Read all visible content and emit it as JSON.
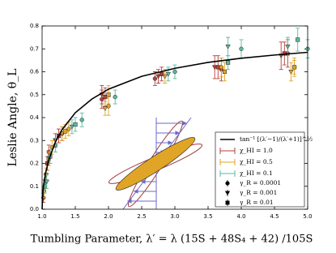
{
  "chart_data": {
    "type": "errorbar_scatter",
    "xlabel": "Tumbling Parameter, λ′ = λ (15S + 48S₄ + 42) /105S",
    "ylabel": "Leslie Angle, θ_L",
    "xlim": [
      1.0,
      5.0
    ],
    "ylim": [
      0.0,
      0.8
    ],
    "xticks": [
      {
        "value": 1.0,
        "label": "1.0"
      },
      1.5,
      {
        "value": 2.0,
        "label": "2.0"
      },
      2.5,
      {
        "value": 3.0,
        "label": "3.0"
      },
      3.5,
      {
        "value": 4.0,
        "label": "4.0"
      },
      4.5,
      {
        "value": 5.0,
        "label": "5.0"
      }
    ],
    "yticks": [
      {
        "value": 0.0,
        "label": "0.0"
      },
      0.1,
      0.2,
      0.3,
      0.4,
      0.5,
      0.6,
      0.7,
      0.8
    ],
    "curve": {
      "name": "tan⁻¹ [(λ′−1)/(λ′+1)]^½",
      "color": "#000000",
      "x": [
        1.0,
        1.01,
        1.02,
        1.05,
        1.1,
        1.2,
        1.3,
        1.5,
        1.75,
        2.0,
        2.5,
        3.0,
        3.5,
        4.0,
        4.5,
        5.0
      ],
      "values": [
        0.0,
        0.07,
        0.099,
        0.155,
        0.215,
        0.293,
        0.347,
        0.421,
        0.481,
        0.524,
        0.58,
        0.615,
        0.641,
        0.659,
        0.673,
        0.685
      ]
    },
    "markers": [
      {
        "name": "γ_R = 0.0001",
        "marker": "circle"
      },
      {
        "name": "γ_R = 0.001",
        "marker": "triangle"
      },
      {
        "name": "γ_R = 0.01",
        "marker": "square"
      }
    ],
    "series": [
      {
        "name": "χ_HI = 1.0",
        "color": "#b5403a",
        "groups": [
          {
            "marker": 0,
            "x": [
              1.02,
              1.1,
              1.3,
              1.9,
              2.7,
              3.7,
              4.7
            ],
            "values": [
              0.05,
              0.25,
              0.33,
              0.48,
              0.57,
              0.61,
              0.68
            ],
            "errors": [
              0.02,
              0.03,
              0.03,
              0.04,
              0.03,
              0.05,
              0.06
            ]
          },
          {
            "marker": 1,
            "x": [
              1.05,
              1.2,
              1.9,
              2.75,
              3.6,
              4.6
            ],
            "values": [
              0.12,
              0.3,
              0.5,
              0.58,
              0.62,
              0.67
            ],
            "errors": [
              0.03,
              0.03,
              0.04,
              0.03,
              0.05,
              0.06
            ]
          },
          {
            "marker": 2,
            "x": [
              1.08,
              1.25,
              1.95,
              2.8,
              3.65,
              4.65
            ],
            "values": [
              0.2,
              0.32,
              0.49,
              0.59,
              0.62,
              0.68
            ],
            "errors": [
              0.03,
              0.03,
              0.04,
              0.03,
              0.05,
              0.05
            ]
          }
        ]
      },
      {
        "name": "χ_HI = 0.5",
        "color": "#e0a526",
        "groups": [
          {
            "marker": 0,
            "x": [
              1.03,
              1.15,
              1.4,
              2.0,
              3.7,
              4.8
            ],
            "values": [
              0.08,
              0.27,
              0.35,
              0.45,
              0.62,
              0.62
            ],
            "errors": [
              0.03,
              0.03,
              0.03,
              0.04,
              0.04,
              0.04
            ]
          },
          {
            "marker": 1,
            "x": [
              1.06,
              1.3,
              1.95,
              2.85,
              4.75
            ],
            "values": [
              0.15,
              0.33,
              0.44,
              0.58,
              0.6
            ],
            "errors": [
              0.03,
              0.03,
              0.03,
              0.03,
              0.04
            ]
          },
          {
            "marker": 2,
            "x": [
              1.1,
              1.35,
              2.0,
              3.75,
              4.8
            ],
            "values": [
              0.22,
              0.34,
              0.5,
              0.6,
              0.62
            ],
            "errors": [
              0.03,
              0.03,
              0.04,
              0.04,
              0.03
            ]
          }
        ]
      },
      {
        "name": "χ_HI = 0.1",
        "color": "#5cb8a0",
        "groups": [
          {
            "marker": 0,
            "x": [
              1.04,
              1.2,
              1.6,
              2.1,
              3.0,
              4.0,
              5.0
            ],
            "values": [
              0.1,
              0.28,
              0.39,
              0.49,
              0.6,
              0.7,
              0.7
            ],
            "errors": [
              0.03,
              0.03,
              0.03,
              0.03,
              0.03,
              0.04,
              0.04
            ]
          },
          {
            "marker": 1,
            "x": [
              1.07,
              1.45,
              2.9,
              3.8,
              4.7
            ],
            "values": [
              0.12,
              0.36,
              0.59,
              0.71,
              0.71
            ],
            "errors": [
              0.03,
              0.03,
              0.03,
              0.04,
              0.04
            ]
          },
          {
            "marker": 2,
            "x": [
              1.12,
              1.5,
              3.8,
              4.85
            ],
            "values": [
              0.23,
              0.37,
              0.64,
              0.74
            ],
            "errors": [
              0.03,
              0.03,
              0.03,
              0.05
            ]
          }
        ]
      }
    ]
  }
}
